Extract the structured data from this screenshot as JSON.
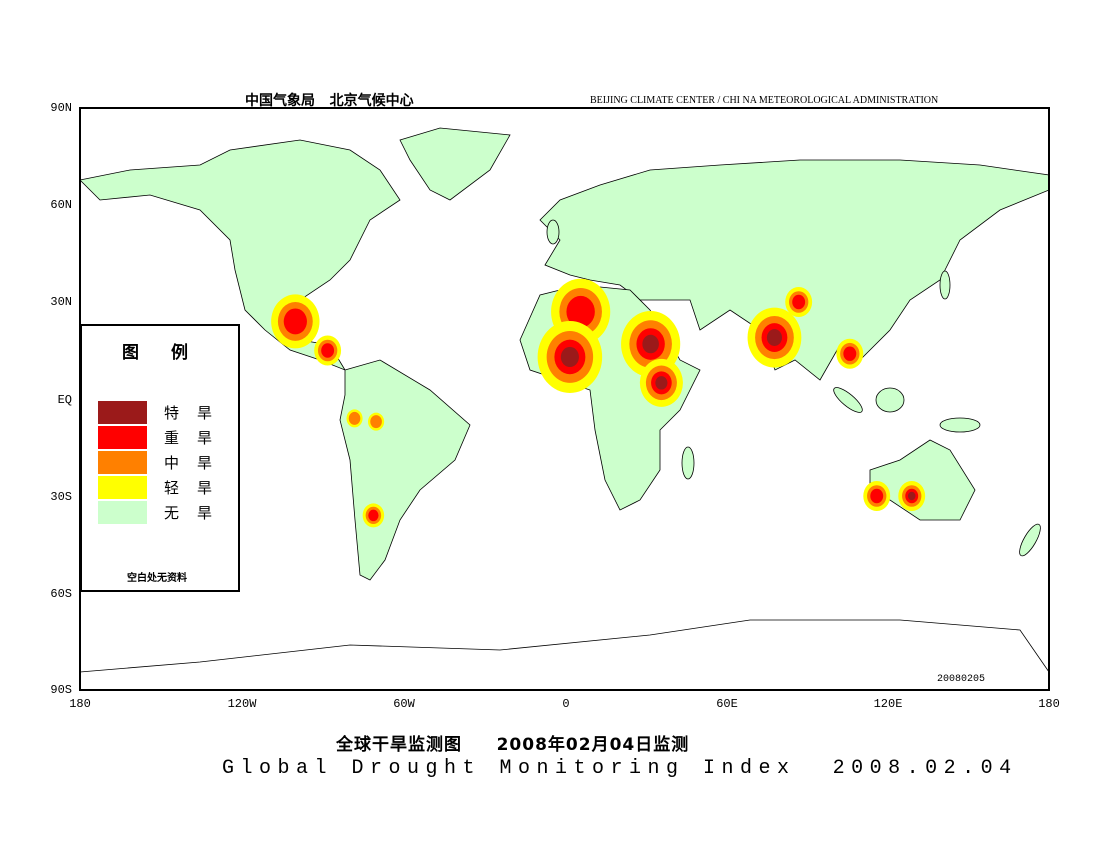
{
  "header": {
    "cn": "中国气象局   北京气候中心",
    "en": "BEIJING CLIMATE CENTER / CHI NA METEOROLOGICAL ADMINISTRATION"
  },
  "y_ticks": [
    "90N",
    "60N",
    "30N",
    "EQ",
    "30S",
    "60S",
    "90S"
  ],
  "x_ticks": [
    "180",
    "120W",
    "60W",
    "0",
    "60E",
    "120E",
    "180"
  ],
  "legend": {
    "title": "图例",
    "items": [
      {
        "label": "特旱",
        "color": "#9b1a1a"
      },
      {
        "label": "重旱",
        "color": "#ff0000"
      },
      {
        "label": "中旱",
        "color": "#ff8000"
      },
      {
        "label": "轻旱",
        "color": "#ffff00"
      },
      {
        "label": "无旱",
        "color": "#ccffcc"
      }
    ],
    "note": "空白处无资料"
  },
  "date_stamp": "20080205",
  "title_cn": "全球干旱监测图     2008年02月04日监测",
  "title_en": "Global Drought Monitoring Index  2008.02.04",
  "drought_regions": [
    {
      "name": "mexico",
      "lon": -100,
      "lat": 24,
      "r": 9,
      "max": 3
    },
    {
      "name": "central-america",
      "lon": -88,
      "lat": 15,
      "r": 5,
      "max": 3
    },
    {
      "name": "sahara",
      "lon": 6,
      "lat": 27,
      "r": 11,
      "max": 3
    },
    {
      "name": "west-africa",
      "lon": 2,
      "lat": 13,
      "r": 12,
      "max": 4
    },
    {
      "name": "sudan",
      "lon": 32,
      "lat": 17,
      "r": 11,
      "max": 4
    },
    {
      "name": "east-africa",
      "lon": 36,
      "lat": 5,
      "r": 8,
      "max": 4
    },
    {
      "name": "india",
      "lon": 78,
      "lat": 19,
      "r": 10,
      "max": 4
    },
    {
      "name": "tibet",
      "lon": 87,
      "lat": 30,
      "r": 5,
      "max": 3
    },
    {
      "name": "indochina",
      "lon": 106,
      "lat": 14,
      "r": 5,
      "max": 3
    },
    {
      "name": "sw-australia",
      "lon": 116,
      "lat": -30,
      "r": 5,
      "max": 3
    },
    {
      "name": "s-australia",
      "lon": 129,
      "lat": -30,
      "r": 5,
      "max": 4
    },
    {
      "name": "chile",
      "lon": -71,
      "lat": -36,
      "r": 4,
      "max": 3
    },
    {
      "name": "peru",
      "lon": -78,
      "lat": -6,
      "r": 3,
      "max": 2
    },
    {
      "name": "brazil",
      "lon": -70,
      "lat": -7,
      "r": 3,
      "max": 2
    }
  ]
}
